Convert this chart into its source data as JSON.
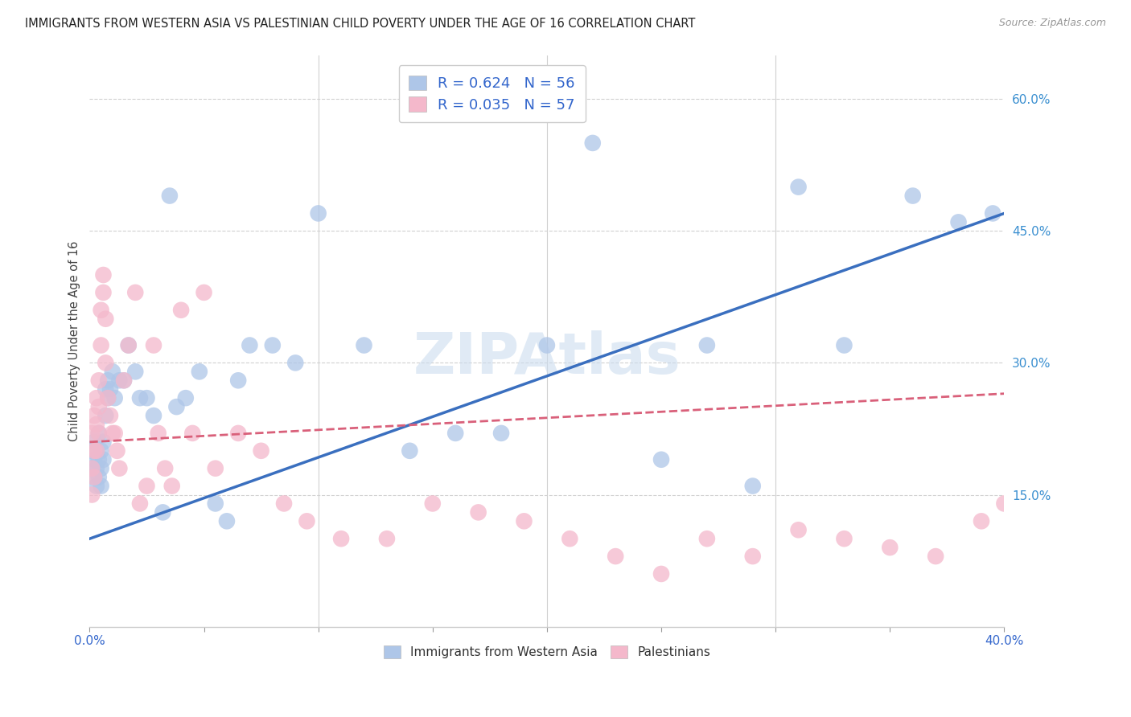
{
  "title": "IMMIGRANTS FROM WESTERN ASIA VS PALESTINIAN CHILD POVERTY UNDER THE AGE OF 16 CORRELATION CHART",
  "source": "Source: ZipAtlas.com",
  "ylabel": "Child Poverty Under the Age of 16",
  "xlim": [
    0,
    0.4
  ],
  "ylim": [
    0,
    0.65
  ],
  "yticks_right": [
    0.15,
    0.3,
    0.45,
    0.6
  ],
  "ytick_right_labels": [
    "15.0%",
    "30.0%",
    "45.0%",
    "60.0%"
  ],
  "R_blue": 0.624,
  "N_blue": 56,
  "R_pink": 0.035,
  "N_pink": 57,
  "blue_color": "#aec6e8",
  "pink_color": "#f4b8cb",
  "blue_line_color": "#3a6fbf",
  "pink_line_color": "#d9607a",
  "legend_text_color": "#3366cc",
  "watermark": "ZIPAtlas",
  "blue_line_x0": 0.0,
  "blue_line_y0": 0.1,
  "blue_line_x1": 0.4,
  "blue_line_y1": 0.47,
  "pink_line_x0": 0.0,
  "pink_line_y0": 0.21,
  "pink_line_x1": 0.4,
  "pink_line_y1": 0.265,
  "blue_scatter_x": [
    0.001,
    0.001,
    0.002,
    0.002,
    0.002,
    0.003,
    0.003,
    0.003,
    0.004,
    0.004,
    0.004,
    0.005,
    0.005,
    0.005,
    0.006,
    0.006,
    0.007,
    0.007,
    0.008,
    0.008,
    0.009,
    0.01,
    0.011,
    0.013,
    0.015,
    0.017,
    0.02,
    0.022,
    0.025,
    0.028,
    0.032,
    0.035,
    0.038,
    0.042,
    0.048,
    0.055,
    0.06,
    0.065,
    0.07,
    0.08,
    0.09,
    0.1,
    0.12,
    0.14,
    0.16,
    0.18,
    0.2,
    0.22,
    0.25,
    0.27,
    0.29,
    0.31,
    0.33,
    0.36,
    0.38,
    0.395
  ],
  "blue_scatter_y": [
    0.2,
    0.18,
    0.19,
    0.17,
    0.21,
    0.18,
    0.2,
    0.16,
    0.19,
    0.17,
    0.22,
    0.2,
    0.18,
    0.16,
    0.21,
    0.19,
    0.24,
    0.27,
    0.26,
    0.28,
    0.27,
    0.29,
    0.26,
    0.28,
    0.28,
    0.32,
    0.29,
    0.26,
    0.26,
    0.24,
    0.13,
    0.49,
    0.25,
    0.26,
    0.29,
    0.14,
    0.12,
    0.28,
    0.32,
    0.32,
    0.3,
    0.47,
    0.32,
    0.2,
    0.22,
    0.22,
    0.32,
    0.55,
    0.19,
    0.32,
    0.16,
    0.5,
    0.32,
    0.49,
    0.46,
    0.47
  ],
  "pink_scatter_x": [
    0.001,
    0.001,
    0.001,
    0.002,
    0.002,
    0.002,
    0.003,
    0.003,
    0.003,
    0.004,
    0.004,
    0.004,
    0.005,
    0.005,
    0.006,
    0.006,
    0.007,
    0.007,
    0.008,
    0.009,
    0.01,
    0.011,
    0.012,
    0.013,
    0.015,
    0.017,
    0.02,
    0.022,
    0.025,
    0.028,
    0.03,
    0.033,
    0.036,
    0.04,
    0.045,
    0.05,
    0.055,
    0.065,
    0.075,
    0.085,
    0.095,
    0.11,
    0.13,
    0.15,
    0.17,
    0.19,
    0.21,
    0.23,
    0.25,
    0.27,
    0.29,
    0.31,
    0.33,
    0.35,
    0.37,
    0.39,
    0.4
  ],
  "pink_scatter_y": [
    0.22,
    0.18,
    0.15,
    0.24,
    0.2,
    0.17,
    0.26,
    0.23,
    0.2,
    0.28,
    0.25,
    0.22,
    0.32,
    0.36,
    0.4,
    0.38,
    0.35,
    0.3,
    0.26,
    0.24,
    0.22,
    0.22,
    0.2,
    0.18,
    0.28,
    0.32,
    0.38,
    0.14,
    0.16,
    0.32,
    0.22,
    0.18,
    0.16,
    0.36,
    0.22,
    0.38,
    0.18,
    0.22,
    0.2,
    0.14,
    0.12,
    0.1,
    0.1,
    0.14,
    0.13,
    0.12,
    0.1,
    0.08,
    0.06,
    0.1,
    0.08,
    0.11,
    0.1,
    0.09,
    0.08,
    0.12,
    0.14
  ]
}
